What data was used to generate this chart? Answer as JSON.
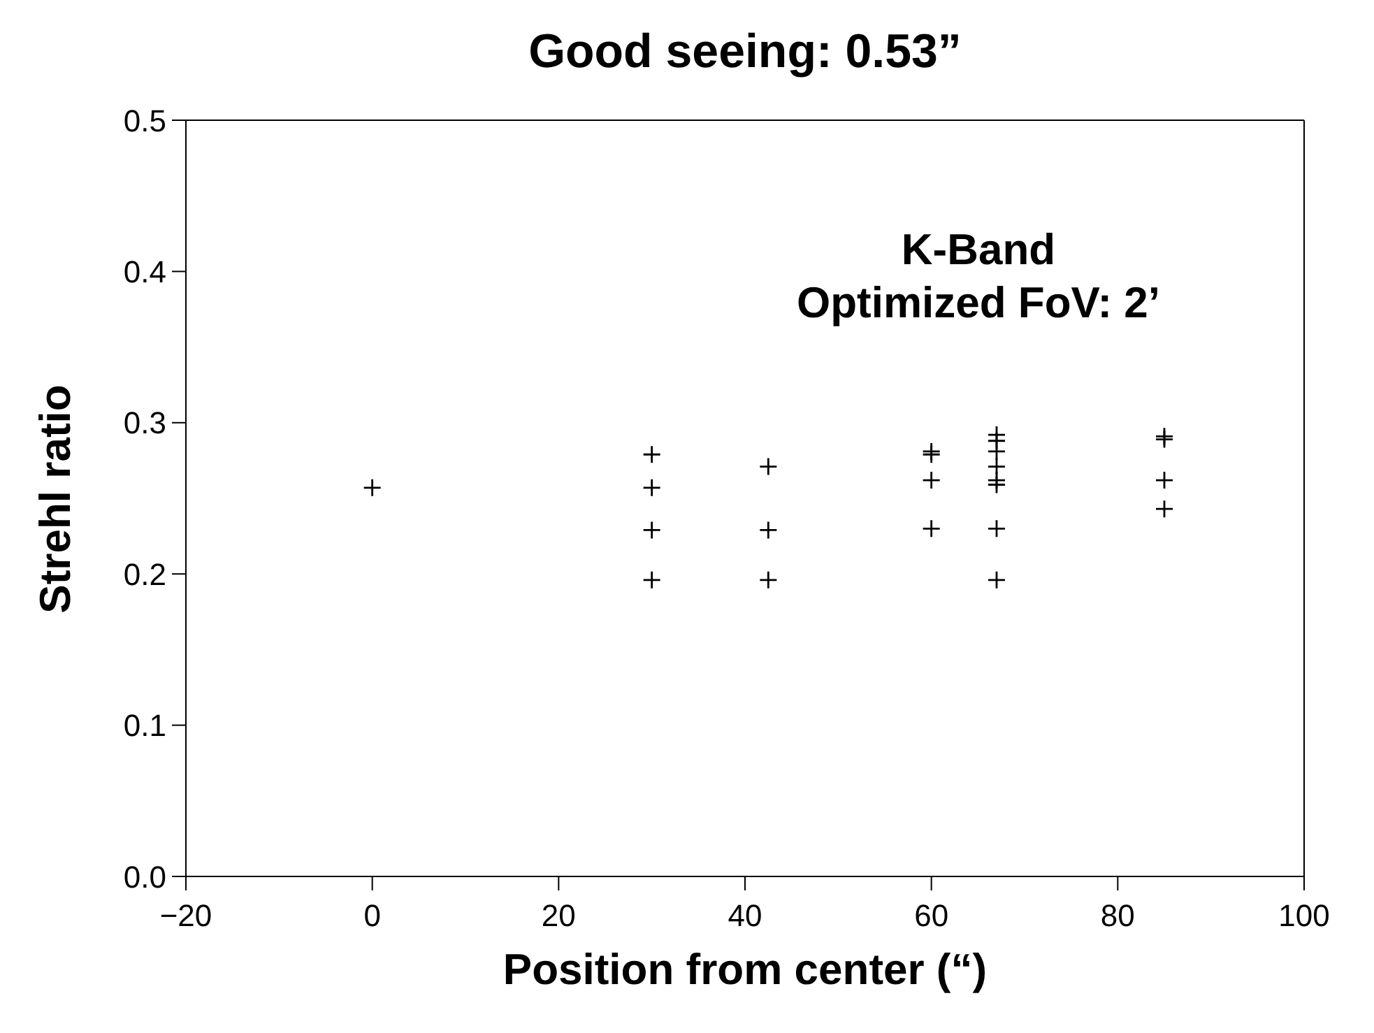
{
  "chart_data": {
    "type": "scatter",
    "title": "Good seeing: 0.53”",
    "xlabel": "Position from center (“)",
    "ylabel": "Strehl ratio",
    "annotations": [
      "K-Band",
      "Optimized FoV: 2’"
    ],
    "x": [
      0,
      30,
      30,
      30,
      30,
      42.5,
      42.5,
      42.5,
      60,
      60,
      60,
      60,
      67,
      67,
      67,
      67,
      67,
      67,
      67,
      67,
      85,
      85,
      85,
      85
    ],
    "values": [
      0.257,
      0.279,
      0.257,
      0.229,
      0.196,
      0.271,
      0.229,
      0.196,
      0.281,
      0.279,
      0.262,
      0.23,
      0.292,
      0.288,
      0.281,
      0.271,
      0.262,
      0.259,
      0.23,
      0.196,
      0.291,
      0.289,
      0.262,
      0.243
    ],
    "color": "#000000",
    "marker": "cross",
    "xlim": [
      -20,
      100
    ],
    "xticks": [
      -20,
      0,
      20,
      40,
      60,
      80,
      100
    ],
    "ylim": [
      0,
      0.5
    ],
    "yticks": [
      {
        "value": 0,
        "label": "0.0"
      },
      {
        "value": 0.1,
        "label": "0.1"
      },
      {
        "value": 0.2,
        "label": "0.2"
      },
      {
        "value": 0.3,
        "label": "0.3"
      },
      {
        "value": 0.4,
        "label": "0.4"
      },
      {
        "value": 0.5,
        "label": "0.5"
      }
    ]
  }
}
